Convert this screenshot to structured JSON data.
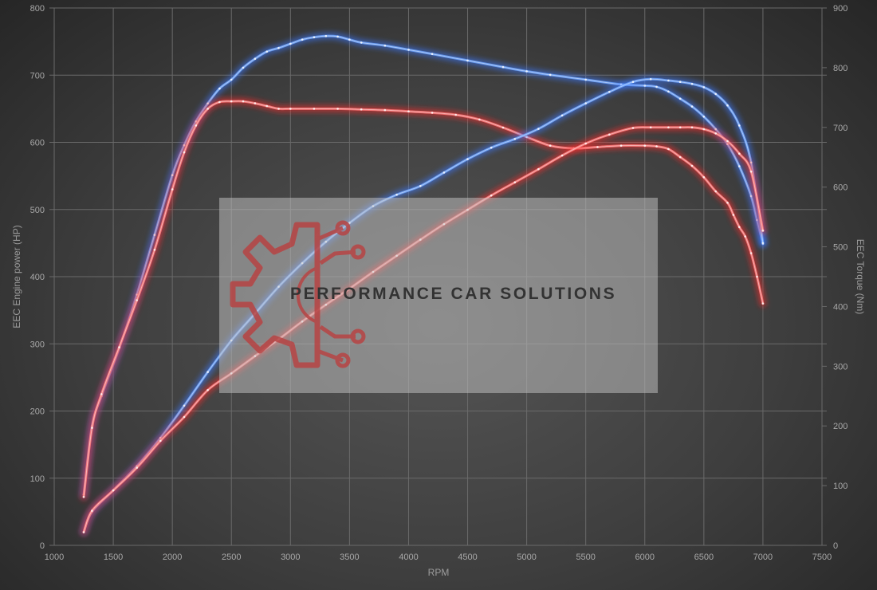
{
  "chart_data": {
    "type": "line",
    "xlabel": "RPM",
    "ylabel_left": "EEC Engine power (HP)",
    "ylabel_right": "EEC Torque (Nm)",
    "xlim": [
      1000,
      7500
    ],
    "ylim_left": [
      0,
      800
    ],
    "ylim_right": [
      0,
      900
    ],
    "x_ticks": [
      "1000",
      "1500",
      "2000",
      "2500",
      "3000",
      "3500",
      "4000",
      "4500",
      "5000",
      "5500",
      "6000",
      "6500",
      "7000",
      "7500"
    ],
    "y_left_ticks": [
      "0",
      "100",
      "200",
      "300",
      "400",
      "500",
      "600",
      "700",
      "800"
    ],
    "y_right_ticks": [
      "0",
      "100",
      "200",
      "300",
      "400",
      "500",
      "600",
      "700",
      "800",
      "900"
    ],
    "grid": true,
    "series": [
      {
        "axis": "right",
        "color": "#6ea6ff",
        "glow": "#3a78ff",
        "x": [
          1250,
          1320,
          1400,
          1550,
          1700,
          1850,
          2000,
          2100,
          2200,
          2300,
          2400,
          2500,
          2600,
          2700,
          2800,
          2900,
          3000,
          3100,
          3200,
          3300,
          3400,
          3500,
          3600,
          3800,
          4000,
          4200,
          4500,
          4800,
          5000,
          5200,
          5500,
          5800,
          6000,
          6100,
          6200,
          6300,
          6400,
          6500,
          6600,
          6700,
          6800,
          6900,
          6950,
          7000
        ],
        "y": [
          85,
          200,
          250,
          330,
          420,
          520,
          620,
          670,
          710,
          740,
          765,
          780,
          800,
          815,
          827,
          833,
          840,
          847,
          851,
          853,
          852,
          847,
          842,
          837,
          830,
          823,
          812,
          801,
          794,
          788,
          780,
          772,
          770,
          768,
          760,
          748,
          735,
          718,
          697,
          672,
          635,
          585,
          545,
          505
        ]
      },
      {
        "axis": "left",
        "color": "#ff7a7a",
        "glow": "#ff2a2a",
        "x": [
          1250,
          1320,
          1400,
          1550,
          1700,
          1850,
          2000,
          2100,
          2200,
          2300,
          2400,
          2500,
          2600,
          2700,
          2800,
          2900,
          3000,
          3200,
          3400,
          3600,
          3800,
          4000,
          4200,
          4400,
          4600,
          4800,
          5000,
          5200,
          5400,
          5600,
          5800,
          6000,
          6100,
          6200,
          6300,
          6400,
          6500,
          6600,
          6700,
          6750,
          6800,
          6850,
          6900,
          6950,
          7000
        ],
        "y": [
          72,
          175,
          225,
          295,
          365,
          440,
          530,
          585,
          625,
          650,
          660,
          661,
          661,
          658,
          654,
          650,
          650,
          650,
          650,
          649,
          648,
          646,
          644,
          641,
          634,
          622,
          608,
          595,
          591,
          593,
          595,
          595,
          594,
          590,
          578,
          565,
          548,
          527,
          510,
          492,
          474,
          460,
          435,
          400,
          360
        ]
      },
      {
        "axis": "left",
        "color": "#6ea6ff",
        "glow": "#3a78ff",
        "x": [
          1250,
          1320,
          1500,
          1700,
          1900,
          2100,
          2300,
          2500,
          2700,
          2900,
          3100,
          3300,
          3500,
          3700,
          3900,
          4100,
          4300,
          4500,
          4700,
          4900,
          5100,
          5300,
          5500,
          5700,
          5900,
          6050,
          6200,
          6300,
          6400,
          6500,
          6600,
          6700,
          6800,
          6900,
          7000
        ],
        "y": [
          20,
          50,
          82,
          118,
          160,
          208,
          258,
          305,
          345,
          385,
          420,
          452,
          480,
          505,
          522,
          535,
          555,
          575,
          592,
          605,
          620,
          640,
          658,
          675,
          690,
          694,
          692,
          690,
          687,
          682,
          672,
          655,
          625,
          570,
          450
        ]
      },
      {
        "axis": "right",
        "color": "#ff7a7a",
        "glow": "#ff2a2a",
        "x": [
          1250,
          1320,
          1500,
          1700,
          1900,
          2100,
          2300,
          2500,
          2700,
          2900,
          3100,
          3300,
          3500,
          3700,
          3900,
          4100,
          4300,
          4500,
          4700,
          4900,
          5100,
          5300,
          5500,
          5700,
          5900,
          6050,
          6200,
          6300,
          6400,
          6500,
          6600,
          6700,
          6800,
          6900,
          7000
        ],
        "y": [
          22,
          58,
          92,
          130,
          175,
          215,
          260,
          288,
          317,
          345,
          375,
          403,
          430,
          458,
          485,
          512,
          538,
          562,
          586,
          608,
          630,
          653,
          673,
          688,
          699,
          700,
          700,
          700,
          700,
          697,
          690,
          677,
          656,
          626,
          527
        ]
      }
    ]
  },
  "watermark": {
    "text": "PERFORMANCE CAR SOLUTIONS",
    "icon": "gear-circuit-logo",
    "logo_color": "#c04545"
  }
}
